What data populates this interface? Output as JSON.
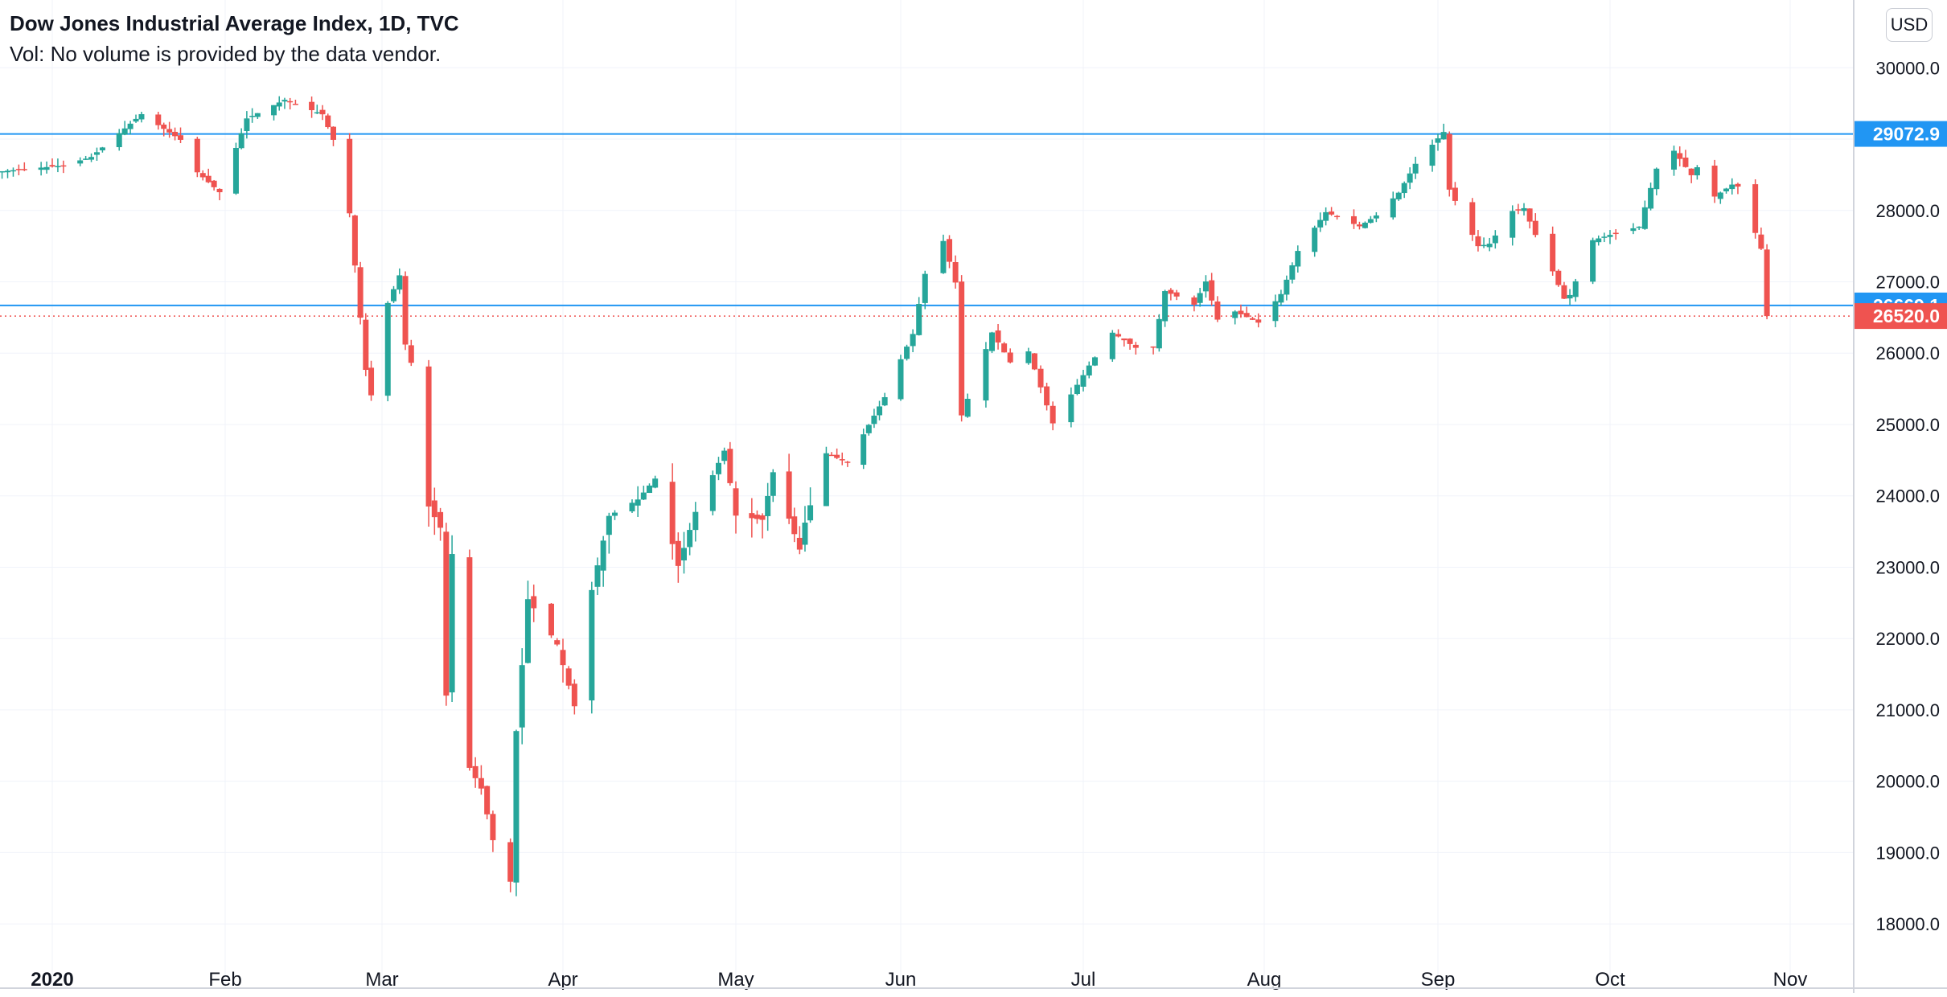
{
  "header": {
    "title": "Dow Jones Industrial Average Index, 1D, TVC",
    "volume_note": "Vol: No volume is provided by the data vendor."
  },
  "currency_button": "USD",
  "colors": {
    "up": "#26a69a",
    "down": "#ef5350",
    "line": "#2196f3",
    "grid": "#f0f3fa",
    "text": "#131722",
    "last_price": "#ef5350"
  },
  "chart_data": {
    "type": "candlestick",
    "title": "Dow Jones Industrial Average Index, 1D, TVC",
    "x_tick_labels": [
      "2020",
      "Feb",
      "Mar",
      "Apr",
      "May",
      "Jun",
      "Jul",
      "Aug",
      "Sep",
      "Oct",
      "Nov"
    ],
    "x_tick_dates": [
      "2020-01-01",
      "2020-02-01",
      "2020-03-01",
      "2020-04-01",
      "2020-05-01",
      "2020-06-01",
      "2020-07-01",
      "2020-08-01",
      "2020-09-01",
      "2020-10-01",
      "2020-11-01"
    ],
    "y_ticks": [
      18000,
      19000,
      20000,
      21000,
      22000,
      23000,
      24000,
      25000,
      26000,
      27000,
      28000,
      29000,
      30000
    ],
    "y_tick_labels": [
      "18000.0",
      "19000.0",
      "20000.0",
      "21000.0",
      "22000.0",
      "23000.0",
      "24000.0",
      "25000.0",
      "26000.0",
      "27000.0",
      "28000.0",
      "29000.0",
      "30000.0"
    ],
    "ylim": [
      17100,
      30950
    ],
    "horizontal_lines": [
      {
        "value": 29072.9,
        "label": "29072.9",
        "color": "#2196f3",
        "style": "solid"
      },
      {
        "value": 26669.1,
        "label": "26669.1",
        "color": "#2196f3",
        "style": "solid"
      }
    ],
    "last_price": {
      "value": 26520.0,
      "label": "26520.0",
      "color": "#ef5350",
      "style": "dotted"
    },
    "grid": true,
    "candle_date_range": [
      "2019-12-23",
      "2020-10-28"
    ],
    "close_path": [
      [
        "2019-12-23",
        28550
      ],
      [
        "2020-01-03",
        28630
      ],
      [
        "2020-01-08",
        28750
      ],
      [
        "2020-01-17",
        29350
      ],
      [
        "2020-01-24",
        28990
      ],
      [
        "2020-01-27",
        28535
      ],
      [
        "2020-01-31",
        28256
      ],
      [
        "2020-02-05",
        29290
      ],
      [
        "2020-02-12",
        29551
      ],
      [
        "2020-02-19",
        29348
      ],
      [
        "2020-02-21",
        28990
      ],
      [
        "2020-02-24",
        27960
      ],
      [
        "2020-02-27",
        25766
      ],
      [
        "2020-02-28",
        25409
      ],
      [
        "2020-03-02",
        26703
      ],
      [
        "2020-03-04",
        27091
      ],
      [
        "2020-03-05",
        26121
      ],
      [
        "2020-03-06",
        25865
      ],
      [
        "2020-03-09",
        23851
      ],
      [
        "2020-03-11",
        23553
      ],
      [
        "2020-03-12",
        21200
      ],
      [
        "2020-03-13",
        23185
      ],
      [
        "2020-03-16",
        20188
      ],
      [
        "2020-03-18",
        19898
      ],
      [
        "2020-03-20",
        19174
      ],
      [
        "2020-03-23",
        18591
      ],
      [
        "2020-03-24",
        20704
      ],
      [
        "2020-03-26",
        22552
      ],
      [
        "2020-03-31",
        21917
      ],
      [
        "2020-04-03",
        21052
      ],
      [
        "2020-04-06",
        22680
      ],
      [
        "2020-04-09",
        23719
      ],
      [
        "2020-04-14",
        23949
      ],
      [
        "2020-04-17",
        24242
      ],
      [
        "2020-04-21",
        23018
      ],
      [
        "2020-04-24",
        23775
      ],
      [
        "2020-04-29",
        24633
      ],
      [
        "2020-05-01",
        23723
      ],
      [
        "2020-05-06",
        23664
      ],
      [
        "2020-05-08",
        24331
      ],
      [
        "2020-05-13",
        23247
      ],
      [
        "2020-05-14",
        23625
      ],
      [
        "2020-05-18",
        24597
      ],
      [
        "2020-05-22",
        24465
      ],
      [
        "2020-05-26",
        24995
      ],
      [
        "2020-05-29",
        25383
      ],
      [
        "2020-06-03",
        26269
      ],
      [
        "2020-06-05",
        27111
      ],
      [
        "2020-06-08",
        27572
      ],
      [
        "2020-06-10",
        26990
      ],
      [
        "2020-06-11",
        25128
      ],
      [
        "2020-06-16",
        26290
      ],
      [
        "2020-06-19",
        25871
      ],
      [
        "2020-06-22",
        26025
      ],
      [
        "2020-06-26",
        25016
      ],
      [
        "2020-07-02",
        25827
      ],
      [
        "2020-07-06",
        26287
      ],
      [
        "2020-07-10",
        26075
      ],
      [
        "2020-07-13",
        26086
      ],
      [
        "2020-07-15",
        26870
      ],
      [
        "2020-07-20",
        26680
      ],
      [
        "2020-07-22",
        27005
      ],
      [
        "2020-07-24",
        26470
      ],
      [
        "2020-07-27",
        26584
      ],
      [
        "2020-07-31",
        26428
      ],
      [
        "2020-08-04",
        26828
      ],
      [
        "2020-08-07",
        27433
      ],
      [
        "2020-08-12",
        27976
      ],
      [
        "2020-08-18",
        27778
      ],
      [
        "2020-08-21",
        27930
      ],
      [
        "2020-08-25",
        28249
      ],
      [
        "2020-08-28",
        28654
      ],
      [
        "2020-09-02",
        29100
      ],
      [
        "2020-09-03",
        28292
      ],
      [
        "2020-09-08",
        27500
      ],
      [
        "2020-09-10",
        27534
      ],
      [
        "2020-09-14",
        27993
      ],
      [
        "2020-09-16",
        28032
      ],
      [
        "2020-09-18",
        27657
      ],
      [
        "2020-09-21",
        27147
      ],
      [
        "2020-09-23",
        26763
      ],
      [
        "2020-09-24",
        26815
      ],
      [
        "2020-09-28",
        27584
      ],
      [
        "2020-10-02",
        27682
      ],
      [
        "2020-10-06",
        27773
      ],
      [
        "2020-10-09",
        28586
      ],
      [
        "2020-10-12",
        28837
      ],
      [
        "2020-10-15",
        28494
      ],
      [
        "2020-10-16",
        28606
      ],
      [
        "2020-10-19",
        28195
      ],
      [
        "2020-10-22",
        28363
      ],
      [
        "2020-10-23",
        28335
      ],
      [
        "2020-10-26",
        27685
      ],
      [
        "2020-10-27",
        27463
      ],
      [
        "2020-10-28",
        26520
      ]
    ]
  }
}
